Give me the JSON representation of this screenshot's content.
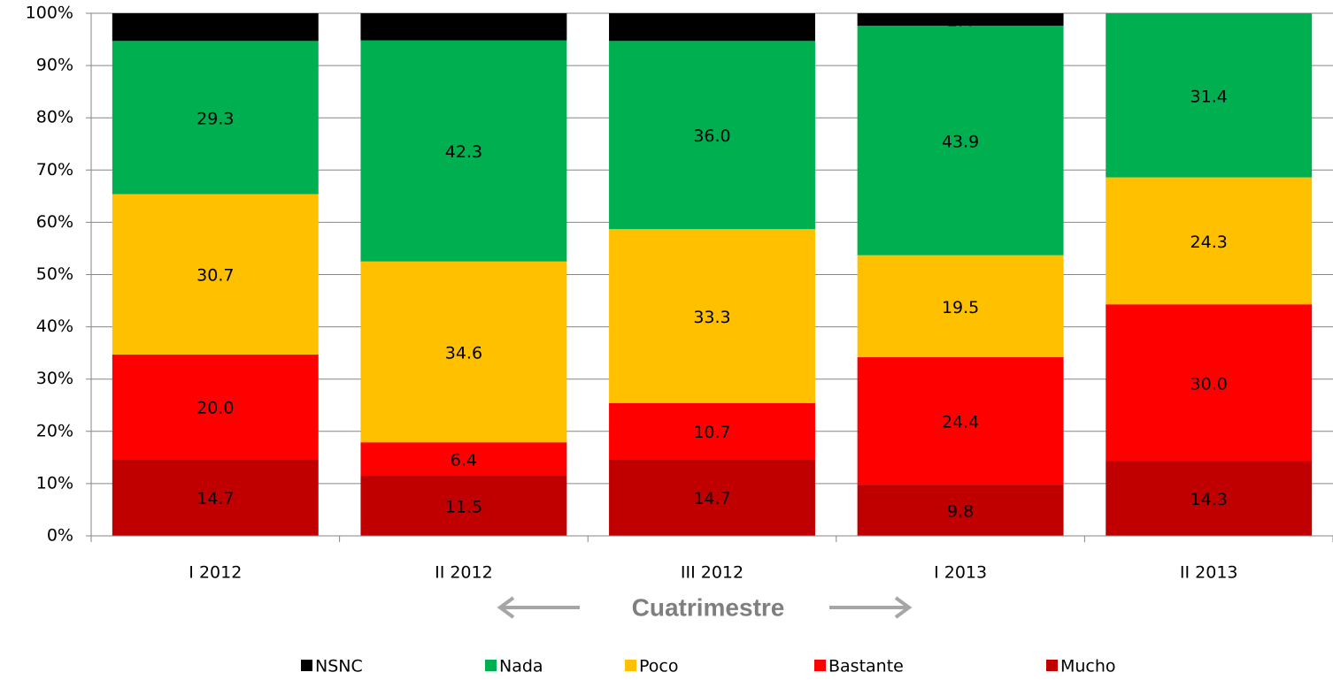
{
  "chart_data": {
    "type": "stacked_bar",
    "x_label": "Cuatrimestre",
    "categories": [
      "I 2012",
      "II 2012",
      "III 2012",
      "I 2013",
      "II 2013"
    ],
    "series": [
      {
        "name": "NSNC",
        "color": "#000000",
        "values": [
          5.3,
          5.2,
          5.3,
          2.4,
          null
        ],
        "value_labels": [
          "5.3",
          "5.2",
          "5.3",
          "2.4",
          null
        ]
      },
      {
        "name": "Nada",
        "color": "#00b050",
        "values": [
          29.3,
          42.3,
          36.0,
          43.9,
          31.4
        ],
        "value_labels": [
          "29.3",
          "42.3",
          "36.0",
          "43.9",
          "31.4"
        ]
      },
      {
        "name": "Poco",
        "color": "#ffc000",
        "values": [
          30.7,
          34.6,
          33.3,
          19.5,
          24.3
        ],
        "value_labels": [
          "30.7",
          "34.6",
          "33.3",
          "19.5",
          "24.3"
        ]
      },
      {
        "name": "Bastante",
        "color": "#ff0000",
        "values": [
          20.0,
          6.4,
          10.7,
          24.4,
          30.0
        ],
        "value_labels": [
          "20.0",
          "6.4",
          "10.7",
          "24.4",
          "30.0"
        ]
      },
      {
        "name": "Mucho",
        "color": "#c00000",
        "values": [
          14.7,
          11.5,
          14.7,
          9.8,
          14.3
        ],
        "value_labels": [
          "14.7",
          "11.5",
          "14.7",
          "9.8",
          "14.3"
        ]
      }
    ],
    "ylim": [
      0,
      100
    ],
    "yticks": [
      {
        "value": 0,
        "label": "0%"
      },
      {
        "value": 10,
        "label": "10%"
      },
      {
        "value": 20,
        "label": "20%"
      },
      {
        "value": 30,
        "label": "30%"
      },
      {
        "value": 40,
        "label": "40%"
      },
      {
        "value": 50,
        "label": "50%"
      },
      {
        "value": 60,
        "label": "60%"
      },
      {
        "value": 70,
        "label": "70%"
      },
      {
        "value": 80,
        "label": "80%"
      },
      {
        "value": 90,
        "label": "90%"
      },
      {
        "value": 100,
        "label": "100%"
      }
    ],
    "grid": true,
    "legend": "bottom"
  }
}
